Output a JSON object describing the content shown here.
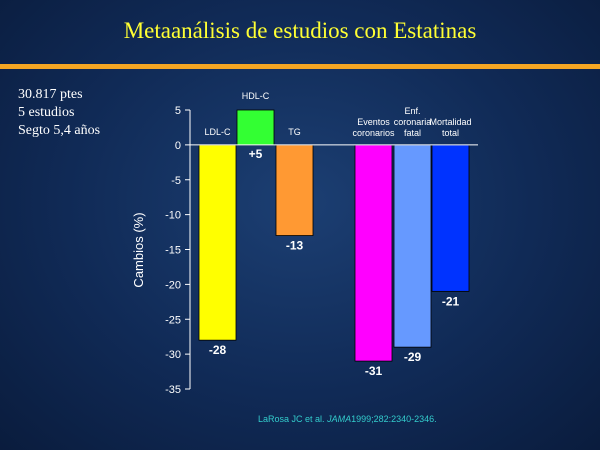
{
  "title": "Metaanálisis de estudios con Estatinas",
  "study_info": [
    "30.817 ptes",
    "5 estudios",
    "Segto 5,4 años"
  ],
  "citation": {
    "authors": "LaRosa JC et al.",
    "journal": "JAMA",
    "details": "1999;282:2340-2346."
  },
  "colors": {
    "background": "#102a56",
    "title": "#ffff33",
    "rule": "#f5a623",
    "citation": "#33cccc"
  },
  "chart_data": {
    "type": "bar",
    "ylabel": "Cambios (%)",
    "ylim": [
      -35,
      5
    ],
    "yticks": [
      5,
      0,
      -5,
      -10,
      -15,
      -20,
      -25,
      -30,
      -35
    ],
    "grid": false,
    "bars": [
      {
        "label": [
          "LDL-C"
        ],
        "value": -28,
        "value_label": "-28",
        "color": "#ffff00",
        "group": 1
      },
      {
        "label": [
          "HDL-C"
        ],
        "value": 5,
        "value_label": "+5",
        "color": "#33ff33",
        "group": 1
      },
      {
        "label": [
          "TG"
        ],
        "value": -13,
        "value_label": "-13",
        "color": "#ff9933",
        "group": 1
      },
      {
        "label": [
          "Eventos",
          "coronarios"
        ],
        "value": -31,
        "value_label": "-31",
        "color": "#ff00ff",
        "group": 2
      },
      {
        "label": [
          "Enf.",
          "coronaria",
          "fatal"
        ],
        "value": -29,
        "value_label": "-29",
        "color": "#6699ff",
        "group": 2
      },
      {
        "label": [
          "Mortalidad",
          "total"
        ],
        "value": -21,
        "value_label": "-21",
        "color": "#0033ff",
        "group": 2
      }
    ]
  }
}
